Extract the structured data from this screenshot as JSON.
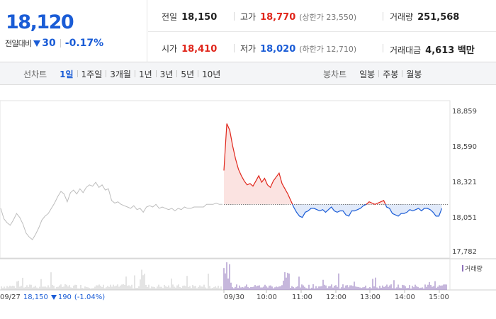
{
  "price": {
    "current": "18,120",
    "change_label": "전일대비",
    "change_amount": "30",
    "change_percent": "-0.17%"
  },
  "stats": {
    "prev_close": {
      "label": "전일",
      "value": "18,150"
    },
    "high": {
      "label": "고가",
      "value": "18,770",
      "sub": "(상한가 23,550)"
    },
    "volume": {
      "label": "거래량",
      "value": "251,568"
    },
    "open": {
      "label": "시가",
      "value": "18,410"
    },
    "low": {
      "label": "저가",
      "value": "18,020",
      "sub": "(하한가 12,710)"
    },
    "trade_value": {
      "label": "거래대금",
      "value": "4,613 백만"
    }
  },
  "colors": {
    "up": "#e0261b",
    "down": "#1a5cd6",
    "prev_day_line": "#bdbdbd",
    "volume": "#8c6fb8"
  },
  "line_chart_tabs": {
    "label": "선차트",
    "items": [
      "1일",
      "1주일",
      "3개월",
      "1년",
      "3년",
      "5년",
      "10년"
    ],
    "active_index": 0
  },
  "candle_chart_tabs": {
    "label": "봉차트",
    "items": [
      "일봉",
      "주봉",
      "월봉"
    ]
  },
  "chart_data": {
    "type": "line",
    "y_ticks": [
      "18,859",
      "18,590",
      "18,321",
      "18,051",
      "17,782"
    ],
    "ylim": [
      17782,
      18859
    ],
    "x_ticks": [
      "09/30",
      "10:00",
      "11:00",
      "12:00",
      "13:00",
      "14:00",
      "15:00"
    ],
    "reference_price": 18150,
    "volume_legend": "거래량",
    "prev_day_summary": {
      "date": "09/27",
      "close": "18,150",
      "change": "190",
      "percent": "(-1.04%)"
    },
    "series": [
      {
        "name": "09/27",
        "step_minutes": 5,
        "values": [
          18120,
          18040,
          18010,
          17990,
          18030,
          18080,
          18050,
          18000,
          17930,
          17900,
          17880,
          17920,
          17970,
          18030,
          18060,
          18080,
          18120,
          18160,
          18210,
          18250,
          18230,
          18170,
          18240,
          18260,
          18230,
          18270,
          18240,
          18280,
          18300,
          18290,
          18320,
          18280,
          18300,
          18260,
          18270,
          18180,
          18160,
          18170,
          18150,
          18140,
          18130,
          18120,
          18140,
          18110,
          18120,
          18090,
          18130,
          18140,
          18130,
          18150,
          18120,
          18130,
          18120,
          18110,
          18120,
          18100,
          18120,
          18110,
          18130,
          18120,
          18120,
          18130,
          18130,
          18130,
          18130,
          18150,
          18150,
          18150,
          18160,
          18150,
          18150
        ]
      },
      {
        "name": "09/30",
        "step_minutes": 5,
        "values": [
          18410,
          18770,
          18720,
          18600,
          18500,
          18420,
          18370,
          18330,
          18300,
          18310,
          18290,
          18330,
          18370,
          18320,
          18350,
          18300,
          18280,
          18330,
          18360,
          18390,
          18310,
          18270,
          18230,
          18180,
          18130,
          18090,
          18060,
          18050,
          18090,
          18100,
          18120,
          18120,
          18110,
          18100,
          18110,
          18090,
          18110,
          18130,
          18100,
          18090,
          18100,
          18100,
          18070,
          18060,
          18100,
          18100,
          18110,
          18120,
          18140,
          18150,
          18170,
          18160,
          18150,
          18160,
          18170,
          18180,
          18130,
          18120,
          18080,
          18070,
          18060,
          18080,
          18080,
          18090,
          18110,
          18100,
          18110,
          18120,
          18100,
          18120,
          18120,
          18110,
          18090,
          18060,
          18060,
          18120
        ]
      }
    ]
  }
}
